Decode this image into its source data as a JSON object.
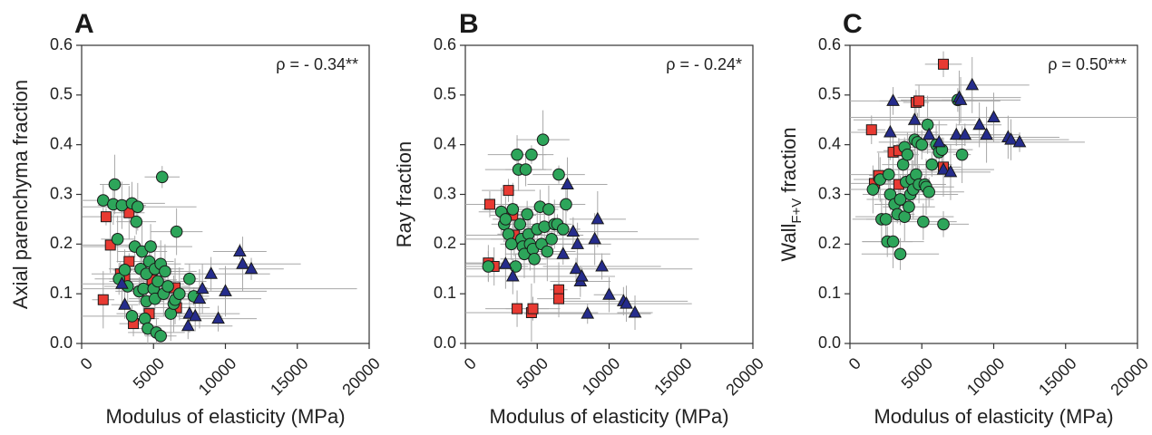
{
  "chart_data": [
    {
      "type": "scatter",
      "panel_label": "A",
      "xlabel": "Modulus of elasticity (MPa)",
      "ylabel": "Axial parenchyma fraction",
      "annotation": "ρ = - 0.34**",
      "xlim": [
        0,
        20000
      ],
      "ylim": [
        0.0,
        0.6
      ],
      "xticks": [
        "0",
        "5000",
        "10000",
        "15000",
        "20000"
      ],
      "yticks": [
        "0.0",
        "0.1",
        "0.2",
        "0.3",
        "0.4",
        "0.5",
        "0.6"
      ],
      "grid": false,
      "series": [
        {
          "marker": "square",
          "color": "#e83a32",
          "points": [
            [
              1500,
              0.088
            ],
            [
              1700,
              0.255
            ],
            [
              2000,
              0.198
            ],
            [
              2700,
              0.14
            ],
            [
              3000,
              0.13
            ],
            [
              3300,
              0.165
            ],
            [
              3300,
              0.263
            ],
            [
              3600,
              0.04
            ],
            [
              4700,
              0.06
            ],
            [
              4900,
              0.128
            ],
            [
              6500,
              0.112
            ],
            [
              6600,
              0.072
            ]
          ]
        },
        {
          "marker": "circle",
          "color": "#2da55a",
          "points": [
            [
              1500,
              0.288
            ],
            [
              2200,
              0.28
            ],
            [
              2300,
              0.32
            ],
            [
              2500,
              0.21
            ],
            [
              2600,
              0.13
            ],
            [
              2800,
              0.278
            ],
            [
              3000,
              0.148
            ],
            [
              3200,
              0.115
            ],
            [
              3500,
              0.282
            ],
            [
              3500,
              0.055
            ],
            [
              3700,
              0.195
            ],
            [
              3800,
              0.245
            ],
            [
              3900,
              0.275
            ],
            [
              4000,
              0.105
            ],
            [
              4100,
              0.15
            ],
            [
              4200,
              0.185
            ],
            [
              4300,
              0.11
            ],
            [
              4400,
              0.05
            ],
            [
              4500,
              0.14
            ],
            [
              4500,
              0.085
            ],
            [
              4600,
              0.03
            ],
            [
              4700,
              0.165
            ],
            [
              4800,
              0.195
            ],
            [
              5000,
              0.11
            ],
            [
              5100,
              0.15
            ],
            [
              5100,
              0.09
            ],
            [
              5200,
              0.022
            ],
            [
              5300,
              0.125
            ],
            [
              5500,
              0.015
            ],
            [
              5500,
              0.16
            ],
            [
              5600,
              0.335
            ],
            [
              5700,
              0.1
            ],
            [
              5800,
              0.145
            ],
            [
              6000,
              0.115
            ],
            [
              6200,
              0.06
            ],
            [
              6400,
              0.08
            ],
            [
              6500,
              0.088
            ],
            [
              6600,
              0.225
            ],
            [
              6800,
              0.1
            ],
            [
              7500,
              0.13
            ],
            [
              7800,
              0.095
            ]
          ]
        },
        {
          "marker": "triangle",
          "color": "#252c8c",
          "points": [
            [
              2800,
              0.12
            ],
            [
              3000,
              0.078
            ],
            [
              7400,
              0.035
            ],
            [
              7500,
              0.06
            ],
            [
              7900,
              0.055
            ],
            [
              8200,
              0.09
            ],
            [
              8400,
              0.11
            ],
            [
              9000,
              0.14
            ],
            [
              9500,
              0.05
            ],
            [
              10000,
              0.105
            ],
            [
              11000,
              0.185
            ],
            [
              11200,
              0.16
            ],
            [
              11800,
              0.15
            ]
          ]
        }
      ]
    },
    {
      "type": "scatter",
      "panel_label": "B",
      "xlabel": "Modulus of elasticity (MPa)",
      "ylabel": "Ray fraction",
      "annotation": "ρ = - 0.24*",
      "xlim": [
        0,
        20000
      ],
      "ylim": [
        0.0,
        0.6
      ],
      "xticks": [
        "0",
        "5000",
        "10000",
        "15000",
        "20000"
      ],
      "yticks": [
        "0.0",
        "0.1",
        "0.2",
        "0.3",
        "0.4",
        "0.5",
        "0.6"
      ],
      "grid": false,
      "series": [
        {
          "marker": "square",
          "color": "#e83a32",
          "points": [
            [
              1600,
              0.162
            ],
            [
              1700,
              0.28
            ],
            [
              2000,
              0.155
            ],
            [
              3000,
              0.308
            ],
            [
              3300,
              0.258
            ],
            [
              3400,
              0.218
            ],
            [
              3600,
              0.07
            ],
            [
              4600,
              0.062
            ],
            [
              4700,
              0.07
            ],
            [
              6500,
              0.108
            ],
            [
              6500,
              0.09
            ]
          ]
        },
        {
          "marker": "circle",
          "color": "#2da55a",
          "points": [
            [
              1600,
              0.155
            ],
            [
              2500,
              0.265
            ],
            [
              2700,
              0.24
            ],
            [
              2800,
              0.25
            ],
            [
              3000,
              0.22
            ],
            [
              3200,
              0.2
            ],
            [
              3300,
              0.27
            ],
            [
              3500,
              0.155
            ],
            [
              3600,
              0.38
            ],
            [
              3700,
              0.35
            ],
            [
              3800,
              0.24
            ],
            [
              3900,
              0.21
            ],
            [
              4000,
              0.195
            ],
            [
              4100,
              0.18
            ],
            [
              4200,
              0.35
            ],
            [
              4300,
              0.26
            ],
            [
              4400,
              0.22
            ],
            [
              4500,
              0.2
            ],
            [
              4600,
              0.38
            ],
            [
              4700,
              0.19
            ],
            [
              4800,
              0.17
            ],
            [
              5000,
              0.23
            ],
            [
              5200,
              0.275
            ],
            [
              5300,
              0.2
            ],
            [
              5400,
              0.41
            ],
            [
              5500,
              0.235
            ],
            [
              5700,
              0.185
            ],
            [
              5800,
              0.27
            ],
            [
              6000,
              0.21
            ],
            [
              6200,
              0.24
            ],
            [
              6400,
              0.24
            ],
            [
              6500,
              0.34
            ],
            [
              6800,
              0.23
            ],
            [
              7000,
              0.28
            ]
          ]
        },
        {
          "marker": "triangle",
          "color": "#252c8c",
          "points": [
            [
              2800,
              0.16
            ],
            [
              3300,
              0.135
            ],
            [
              6800,
              0.18
            ],
            [
              7100,
              0.32
            ],
            [
              7500,
              0.225
            ],
            [
              7700,
              0.15
            ],
            [
              7800,
              0.2
            ],
            [
              8000,
              0.125
            ],
            [
              8100,
              0.135
            ],
            [
              8500,
              0.06
            ],
            [
              9000,
              0.21
            ],
            [
              9200,
              0.25
            ],
            [
              9500,
              0.155
            ],
            [
              10000,
              0.098
            ],
            [
              11000,
              0.085
            ],
            [
              11200,
              0.08
            ],
            [
              11800,
              0.062
            ]
          ]
        }
      ]
    },
    {
      "type": "scatter",
      "panel_label": "C",
      "xlabel": "Modulus of elasticity (MPa)",
      "ylabel_main": "Wall",
      "ylabel_sub": "F+V",
      "ylabel_tail": " fraction",
      "annotation": "ρ = 0.50***",
      "xlim": [
        0,
        20000
      ],
      "ylim": [
        0.0,
        0.6
      ],
      "xticks": [
        "0",
        "5000",
        "10000",
        "15000",
        "20000"
      ],
      "yticks": [
        "0.0",
        "0.1",
        "0.2",
        "0.3",
        "0.4",
        "0.5",
        "0.6"
      ],
      "grid": false,
      "series": [
        {
          "marker": "square",
          "color": "#e83a32",
          "points": [
            [
              1500,
              0.43
            ],
            [
              1700,
              0.322
            ],
            [
              2000,
              0.338
            ],
            [
              3000,
              0.385
            ],
            [
              3400,
              0.388
            ],
            [
              3400,
              0.32
            ],
            [
              3500,
              0.288
            ],
            [
              4600,
              0.485
            ],
            [
              4800,
              0.488
            ],
            [
              6500,
              0.562
            ],
            [
              6500,
              0.355
            ]
          ]
        },
        {
          "marker": "circle",
          "color": "#2da55a",
          "points": [
            [
              1600,
              0.31
            ],
            [
              2100,
              0.33
            ],
            [
              2200,
              0.25
            ],
            [
              2500,
              0.25
            ],
            [
              2600,
              0.205
            ],
            [
              2700,
              0.34
            ],
            [
              2800,
              0.3
            ],
            [
              3000,
              0.205
            ],
            [
              3100,
              0.28
            ],
            [
              3300,
              0.26
            ],
            [
              3500,
              0.18
            ],
            [
              3500,
              0.29
            ],
            [
              3700,
              0.36
            ],
            [
              3800,
              0.395
            ],
            [
              3800,
              0.255
            ],
            [
              3900,
              0.325
            ],
            [
              4000,
              0.38
            ],
            [
              4100,
              0.275
            ],
            [
              4200,
              0.3
            ],
            [
              4300,
              0.33
            ],
            [
              4400,
              0.31
            ],
            [
              4500,
              0.41
            ],
            [
              4600,
              0.34
            ],
            [
              4700,
              0.405
            ],
            [
              4800,
              0.32
            ],
            [
              5000,
              0.4
            ],
            [
              5100,
              0.245
            ],
            [
              5200,
              0.32
            ],
            [
              5300,
              0.315
            ],
            [
              5400,
              0.44
            ],
            [
              5500,
              0.305
            ],
            [
              5700,
              0.36
            ],
            [
              6000,
              0.4
            ],
            [
              6200,
              0.385
            ],
            [
              6400,
              0.39
            ],
            [
              6500,
              0.24
            ],
            [
              7500,
              0.49
            ],
            [
              7800,
              0.38
            ]
          ]
        },
        {
          "marker": "triangle",
          "color": "#252c8c",
          "points": [
            [
              2800,
              0.425
            ],
            [
              3000,
              0.488
            ],
            [
              4500,
              0.45
            ],
            [
              5500,
              0.42
            ],
            [
              6200,
              0.405
            ],
            [
              6500,
              0.35
            ],
            [
              7000,
              0.345
            ],
            [
              7400,
              0.42
            ],
            [
              7600,
              0.495
            ],
            [
              7700,
              0.49
            ],
            [
              8000,
              0.42
            ],
            [
              8500,
              0.52
            ],
            [
              9000,
              0.44
            ],
            [
              9500,
              0.42
            ],
            [
              10000,
              0.455
            ],
            [
              11000,
              0.415
            ],
            [
              11200,
              0.41
            ],
            [
              11800,
              0.405
            ]
          ]
        }
      ]
    }
  ]
}
